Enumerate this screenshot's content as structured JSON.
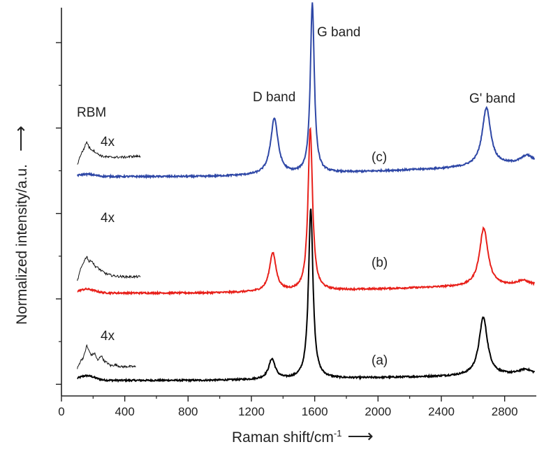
{
  "chart_data": {
    "type": "line",
    "xlabel_main": "Raman shift/cm",
    "xlabel_sup": "-1",
    "xlabel_arrow": "⟶",
    "ylabel": "Normalized intensity/a.u.",
    "ylabel_arrow": "⟶",
    "xlim": [
      0,
      3000
    ],
    "ylim": [
      0,
      1
    ],
    "x_ticks": [
      0,
      400,
      800,
      1200,
      1600,
      2000,
      2400,
      2800
    ],
    "x_tick_labels": [
      "0",
      "400",
      "800",
      "1200",
      "1600",
      "2000",
      "2400",
      "2800"
    ],
    "y_ticks_major": [
      0.03,
      0.25,
      0.47,
      0.69,
      0.91
    ],
    "y_ticks_minor": [
      0.14,
      0.36,
      0.58,
      0.8
    ],
    "grid": false,
    "annotations": {
      "rbm": "RBM",
      "d_band": "D band",
      "g_band": "G band",
      "g_prime_band": "G' band",
      "zoom_a": "4x",
      "zoom_b": "4x",
      "zoom_c": "4x"
    },
    "series": [
      {
        "label": "(a)",
        "color": "#000000",
        "offset": 0.04,
        "baseline_x": [
          100,
          900,
          1500,
          2400,
          3000
        ],
        "baseline_y": [
          0.0,
          0.0,
          0.003,
          0.01,
          0.015
        ],
        "rbm_bump": {
          "x": 160,
          "height": 0.012,
          "width": 70
        },
        "peaks": [
          {
            "x": 1330,
            "height": 0.052,
            "hwhm": 25
          },
          {
            "x": 1575,
            "height": 0.44,
            "hwhm": 17
          },
          {
            "x": 2665,
            "height": 0.15,
            "hwhm": 32
          },
          {
            "x": 2930,
            "height": 0.013,
            "hwhm": 50
          }
        ],
        "rbm_zoom": {
          "x": [
            100,
            120,
            140,
            160,
            175,
            190,
            210,
            230,
            250,
            270,
            290,
            310,
            340,
            380,
            420,
            470
          ],
          "y": [
            0.0,
            0.02,
            0.03,
            0.06,
            0.045,
            0.035,
            0.04,
            0.02,
            0.035,
            0.02,
            0.015,
            0.008,
            0.01,
            0.005,
            0.006,
            0.005
          ]
        }
      },
      {
        "label": "(b)",
        "color": "#e8201a",
        "offset": 0.265,
        "baseline_x": [
          100,
          900,
          1500,
          2400,
          3000
        ],
        "baseline_y": [
          0.0,
          0.0,
          0.004,
          0.015,
          0.02
        ],
        "rbm_bump": {
          "x": 160,
          "height": 0.01,
          "width": 70
        },
        "peaks": [
          {
            "x": 1335,
            "height": 0.1,
            "hwhm": 25
          },
          {
            "x": 1572,
            "height": 0.42,
            "hwhm": 17
          },
          {
            "x": 2668,
            "height": 0.15,
            "hwhm": 32
          },
          {
            "x": 2915,
            "height": 0.012,
            "hwhm": 45
          }
        ],
        "rbm_zoom": {
          "x": [
            100,
            120,
            140,
            160,
            175,
            190,
            210,
            230,
            250,
            280,
            320,
            360,
            400,
            450,
            500
          ],
          "y": [
            0.0,
            0.03,
            0.05,
            0.065,
            0.05,
            0.055,
            0.04,
            0.035,
            0.028,
            0.02,
            0.015,
            0.013,
            0.012,
            0.012,
            0.012
          ]
        }
      },
      {
        "label": "(c)",
        "color": "#2e47a6",
        "offset": 0.565,
        "baseline_x": [
          100,
          900,
          1500,
          2400,
          3000
        ],
        "baseline_y": [
          0.0,
          0.0,
          0.006,
          0.02,
          0.035
        ],
        "rbm_bump": {
          "x": 160,
          "height": 0.006,
          "width": 70
        },
        "peaks": [
          {
            "x": 1345,
            "height": 0.145,
            "hwhm": 28
          },
          {
            "x": 1585,
            "height": 0.44,
            "hwhm": 15
          },
          {
            "x": 2685,
            "height": 0.15,
            "hwhm": 32
          },
          {
            "x": 2940,
            "height": 0.02,
            "hwhm": 45
          }
        ],
        "rbm_zoom": {
          "x": [
            100,
            120,
            140,
            160,
            175,
            190,
            210,
            230,
            260,
            300,
            350,
            400,
            450,
            500
          ],
          "y": [
            0.0,
            0.025,
            0.04,
            0.06,
            0.045,
            0.04,
            0.035,
            0.028,
            0.022,
            0.02,
            0.02,
            0.02,
            0.022,
            0.022
          ]
        }
      }
    ]
  }
}
